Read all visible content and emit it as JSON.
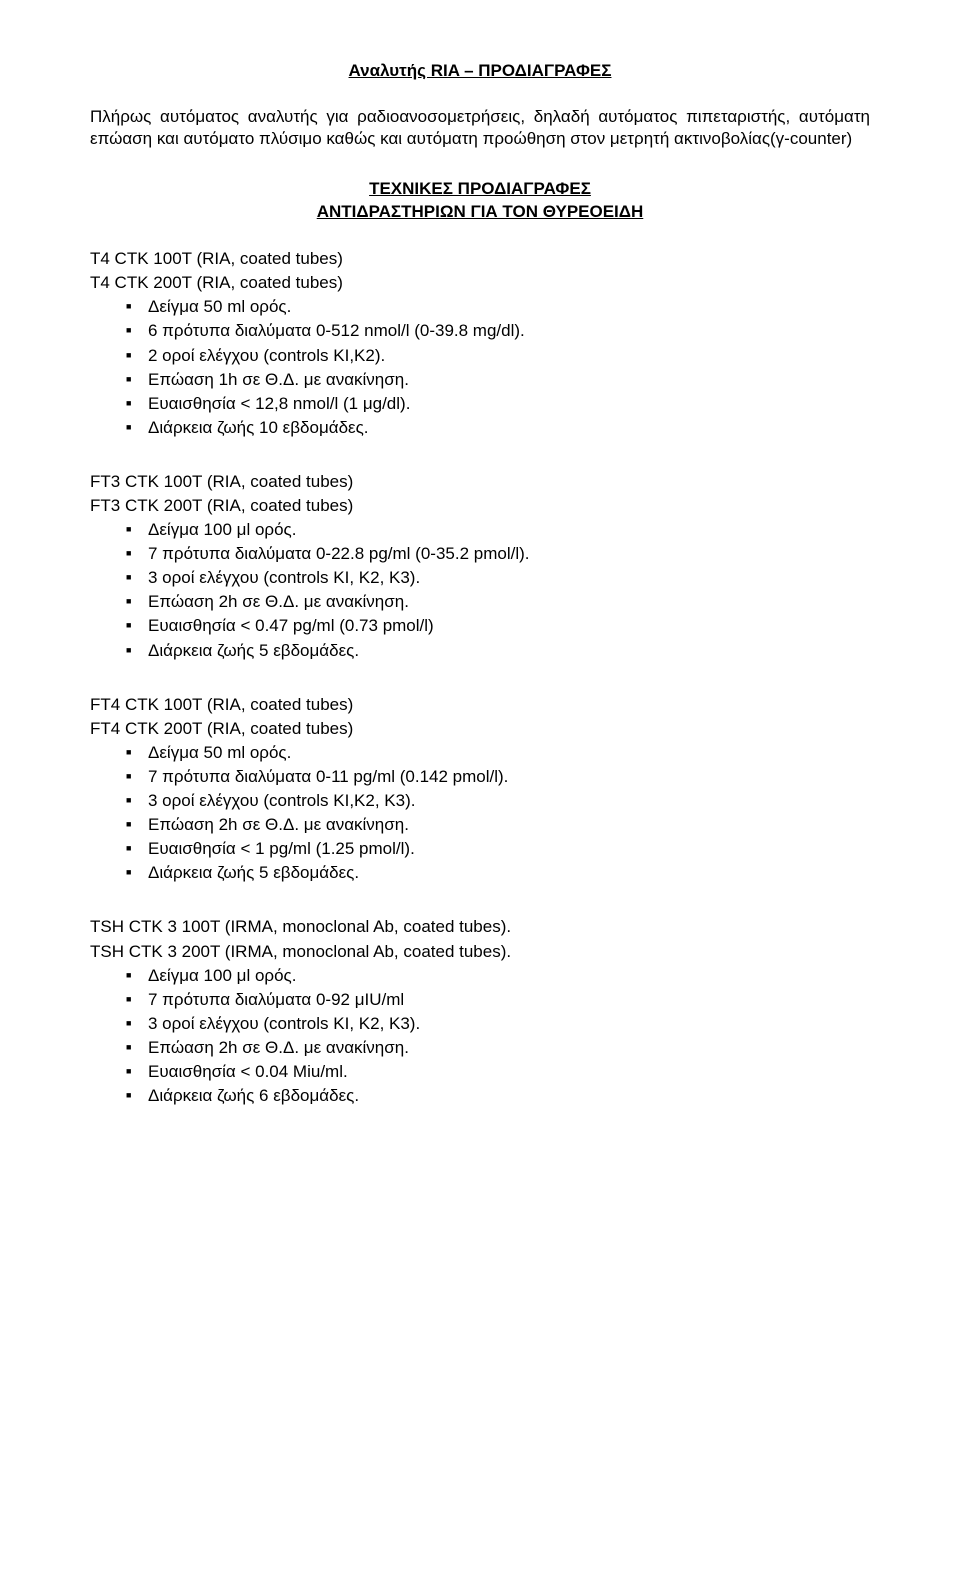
{
  "title": "Αναλυτής RIA – ΠΡΟΔΙΑΓΡΑΦΕΣ",
  "intro": "Πλήρως αυτόματος αναλυτής για ραδιοανοσομετρήσεις, δηλαδή αυτόματος πιπεταριστής, αυτόματη επώαση και αυτόματο πλύσιμο καθώς και αυτόματη προώθηση στον μετρητή ακτινοβολίας(γ-counter)",
  "sectionHeading": {
    "line1": "ΤΕΧΝΙΚΕΣ ΠΡΟΔΙΑΓΡΑΦΕΣ",
    "line2": "ΑΝΤΙΔΡΑΣΤΗΡΙΩΝ ΓΙΑ ΤΟΝ ΘΥΡΕΟΕΙΔΗ"
  },
  "blocks": [
    {
      "headers": [
        "T4 CTK 100T (RIA, coated tubes)",
        "T4 CTK 200T (RIA, coated tubes)"
      ],
      "items": [
        "Δείγμα 50 ml ορός.",
        "6 πρότυπα διαλύματα 0-512 nmol/l (0-39.8 mg/dl).",
        "2 οροί ελέγχου (controls ΚΙ,Κ2).",
        "Επώαση 1h σε Θ.Δ. με ανακίνηση.",
        "Ευαισθησία < 12,8 nmol/l  (1 μg/dl).",
        "Διάρκεια ζωής 10 εβδομάδες."
      ]
    },
    {
      "headers": [
        "FT3 CTK 100T (RIA, coated tubes)",
        "FT3 CTK 200T (RIA, coated tubes)"
      ],
      "items": [
        "Δείγμα 100 μl ορός.",
        "7 πρότυπα διαλύματα 0-22.8 pg/ml (0-35.2 pmol/l).",
        "3 οροί ελέγχου (controls KI, K2, K3).",
        "Επώαση 2h σε Θ.Δ. με ανακίνηση.",
        "Ευαισθησία < 0.47  pg/ml (0.73 pmol/l)",
        "Διάρκεια ζωής 5 εβδομάδες."
      ]
    },
    {
      "headers": [
        "FT4 CTK 100T (RIA, coated tubes)",
        "FT4 CTK 200T (RIA, coated tubes)"
      ],
      "items": [
        "Δείγμα 50 ml ορός.",
        "7 πρότυπα διαλύματα 0-11 pg/ml (0.142 pmol/l).",
        "3 οροί ελέγχου (controls KI,Κ2, K3).",
        "Επώαση 2h σε Θ.Δ. με ανακίνηση.",
        "Ευαισθησία < 1 pg/ml (1.25 pmol/l).",
        "Διάρκεια ζωής 5 εβδομάδες."
      ]
    },
    {
      "headers": [
        "TSH CTK 3 100T (IRMA, monoclonal Ab, coated tubes).",
        "TSH CTK 3 200T (IRMA, monoclonal Ab, coated tubes)."
      ],
      "items": [
        "Δείγμα 100 μl ορός.",
        "7 πρότυπα διαλύματα 0-92  μIU/ml",
        "3 οροί ελέγχου (controls KI, K2, K3).",
        "Επώαση 2h σε Θ.Δ. με ανακίνηση.",
        "Ευαισθησία < 0.04 Miu/ml.",
        "Διάρκεια ζωής 6 εβδομάδες."
      ]
    }
  ]
}
